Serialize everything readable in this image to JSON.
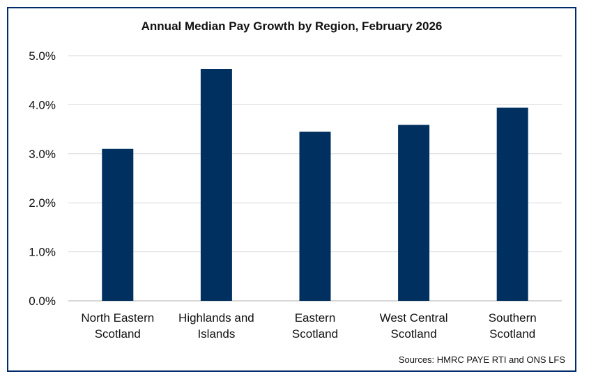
{
  "chart_data": {
    "type": "bar",
    "title": "Annual Median Pay Growth by Region, February 2026",
    "source": "Sources: HMRC PAYE RTI and ONS LFS",
    "categories": [
      [
        "North Eastern",
        "Scotland"
      ],
      [
        "Highlands and",
        "Islands"
      ],
      [
        "Eastern",
        "Scotland"
      ],
      [
        "West Central",
        "Scotland"
      ],
      [
        "Southern",
        "Scotland"
      ]
    ],
    "values": [
      3.1,
      4.73,
      3.45,
      3.59,
      3.94
    ],
    "ylim": [
      0,
      5
    ],
    "yticks": [
      "0.0%",
      "1.0%",
      "2.0%",
      "3.0%",
      "4.0%",
      "5.0%"
    ],
    "grid": true,
    "legend": "none",
    "bar_color": "#00305f",
    "grid_color": "#d9d9d9",
    "axis_color": "#bfbfbf",
    "border_color": "#002b6b"
  }
}
